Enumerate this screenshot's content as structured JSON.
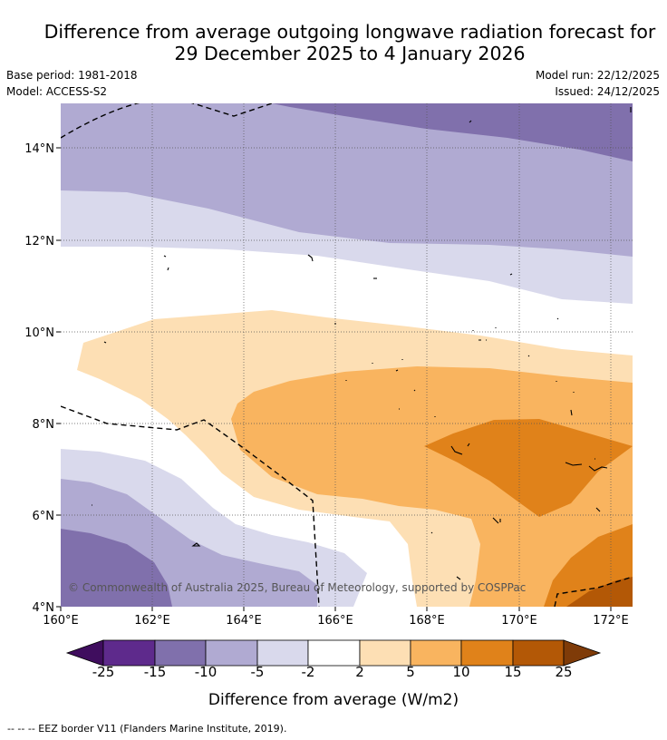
{
  "title": {
    "line1": "Difference from average outgoing longwave radiation forecast for",
    "line2": "29 December 2025 to 4 January 2026"
  },
  "meta": {
    "base_period": "Base period: 1981-2018",
    "model": "Model: ACCESS-S2",
    "model_run": "Model run: 22/12/2025",
    "issued": "Issued: 24/12/2025"
  },
  "map": {
    "lat_labels": [
      "14°N",
      "12°N",
      "10°N",
      "8°N",
      "6°N",
      "4°N"
    ],
    "lon_labels": [
      "160°E",
      "162°E",
      "164°E",
      "166°E",
      "168°E",
      "170°E",
      "172°E"
    ],
    "copyright": "© Commonwealth of Australia 2025, Bureau of Meteorology, supported by COSPPac"
  },
  "colorbar": {
    "title": "Difference from average (W/m2)",
    "labels": [
      "-25",
      "-15",
      "-10",
      "-5",
      "-2",
      "2",
      "5",
      "10",
      "15",
      "25"
    ],
    "colors": [
      "#3f0d5e",
      "#5e2a8c",
      "#8070ac",
      "#b0aad2",
      "#d9d9ec",
      "#ffffff",
      "#fddfb4",
      "#f9b45f",
      "#e0821a",
      "#b35806",
      "#7f3b08"
    ]
  },
  "footer": {
    "legend": "--  --  -- EEZ border V11 (Flanders Marine Institute, 2019)."
  }
}
